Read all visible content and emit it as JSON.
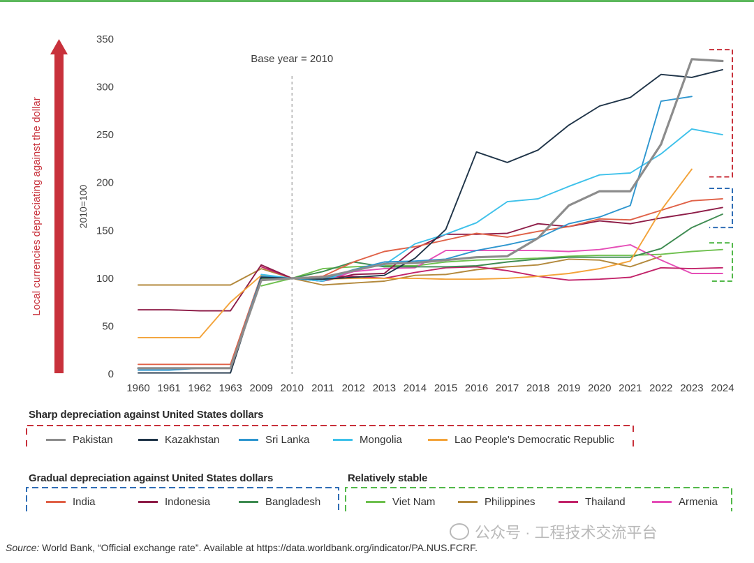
{
  "colors": {
    "Pakistan": "#8c8c8c",
    "Kazakhstan": "#1f3448",
    "Sri Lanka": "#2e96cf",
    "Mongolia": "#3ec1ea",
    "Lao People's Democratic Republic": "#f3a33a",
    "India": "#e06248",
    "Indonesia": "#8e1d48",
    "Bangladesh": "#3f8c52",
    "Viet Nam": "#6fc04f",
    "Philippines": "#b3893c",
    "Thailand": "#c2246a",
    "Armenia": "#e54eb7",
    "red_group": "#c8313b",
    "blue_group": "#2f6db5",
    "green_group": "#52b849",
    "top_rule": "#5cb85c"
  },
  "chart_data": {
    "type": "line",
    "title": "",
    "base_year_label": "Base year = 2010",
    "ylabel": "2010=100",
    "arrow_label": "Local currencies depreciating against the dollar",
    "ylim": [
      0,
      350
    ],
    "yticks": [
      0,
      50,
      100,
      150,
      200,
      250,
      300,
      350
    ],
    "categories": [
      "1960",
      "1961",
      "1962",
      "1963",
      "2009",
      "2010",
      "2011",
      "2012",
      "2013",
      "2014",
      "2015",
      "2016",
      "2017",
      "2018",
      "2019",
      "2020",
      "2021",
      "2022",
      "2023",
      "2024"
    ],
    "series": [
      {
        "name": "Viet Nam",
        "values": [
          null,
          null,
          null,
          null,
          92,
          100,
          110,
          112,
          113,
          113,
          117,
          119,
          120,
          121,
          123,
          124,
          124,
          125,
          128,
          130
        ]
      },
      {
        "name": "Philippines",
        "values": [
          93,
          93,
          93,
          93,
          110,
          100,
          93,
          95,
          97,
          103,
          104,
          109,
          112,
          114,
          120,
          119,
          112,
          123,
          null,
          null
        ]
      },
      {
        "name": "Armenia",
        "values": [
          null,
          null,
          null,
          null,
          100,
          100,
          97,
          107,
          110,
          111,
          129,
          129,
          129,
          129,
          128,
          130,
          135,
          119,
          105,
          105
        ]
      },
      {
        "name": "Thailand",
        "values": [
          null,
          null,
          null,
          null,
          112,
          100,
          102,
          102,
          100,
          106,
          111,
          112,
          108,
          102,
          98,
          99,
          101,
          111,
          110,
          111
        ]
      },
      {
        "name": "Bangladesh",
        "values": [
          null,
          null,
          null,
          null,
          100,
          100,
          107,
          117,
          112,
          112,
          112,
          113,
          117,
          120,
          122,
          122,
          122,
          131,
          153,
          167
        ]
      },
      {
        "name": "Indonesia",
        "values": [
          67,
          67,
          66,
          66,
          114,
          100,
          97,
          104,
          105,
          131,
          146,
          146,
          147,
          157,
          154,
          160,
          157,
          163,
          168,
          174
        ]
      },
      {
        "name": "India",
        "values": [
          10,
          10,
          10,
          10,
          103,
          100,
          102,
          117,
          128,
          133,
          140,
          147,
          143,
          149,
          154,
          162,
          161,
          171,
          181,
          183
        ]
      },
      {
        "name": "Lao People's Democratic Republic",
        "values": [
          38,
          38,
          38,
          75,
          103,
          100,
          99,
          100,
          100,
          100,
          99,
          99,
          100,
          102,
          105,
          110,
          118,
          171,
          214,
          null
        ]
      },
      {
        "name": "Mongolia",
        "values": [
          null,
          null,
          null,
          null,
          104,
          100,
          97,
          109,
          114,
          136,
          146,
          158,
          180,
          183,
          196,
          208,
          210,
          230,
          256,
          250
        ]
      },
      {
        "name": "Sri Lanka",
        "values": [
          4,
          4,
          6,
          6,
          102,
          100,
          99,
          109,
          117,
          118,
          120,
          129,
          135,
          142,
          157,
          164,
          176,
          285,
          290,
          null
        ]
      },
      {
        "name": "Kazakhstan",
        "values": [
          1,
          1,
          1,
          1,
          101,
          100,
          99,
          101,
          103,
          121,
          151,
          232,
          221,
          234,
          260,
          280,
          289,
          313,
          310,
          318
        ]
      },
      {
        "name": "Pakistan",
        "values": [
          6,
          6,
          6,
          6,
          98,
          100,
          101,
          108,
          115,
          116,
          119,
          122,
          123,
          142,
          176,
          191,
          191,
          240,
          329,
          327
        ]
      }
    ]
  },
  "legend": {
    "sharp_title": "Sharp depreciation against United States dollars",
    "sharp_items": [
      "Pakistan",
      "Kazakhstan",
      "Sri Lanka",
      "Mongolia",
      "Lao People's Democratic Republic"
    ],
    "gradual_title": "Gradual depreciation against United States dollars",
    "gradual_items": [
      "India",
      "Indonesia",
      "Bangladesh"
    ],
    "stable_title": "Relatively stable",
    "stable_items": [
      "Viet Nam",
      "Philippines",
      "Thailand",
      "Armenia"
    ]
  },
  "source": {
    "label": "Source:",
    "text": " World Bank, “Official exchange rate”. Available at https://data.worldbank.org/indicator/PA.NUS.FCRF."
  },
  "watermark": "公众号 · 工程技术交流平台"
}
